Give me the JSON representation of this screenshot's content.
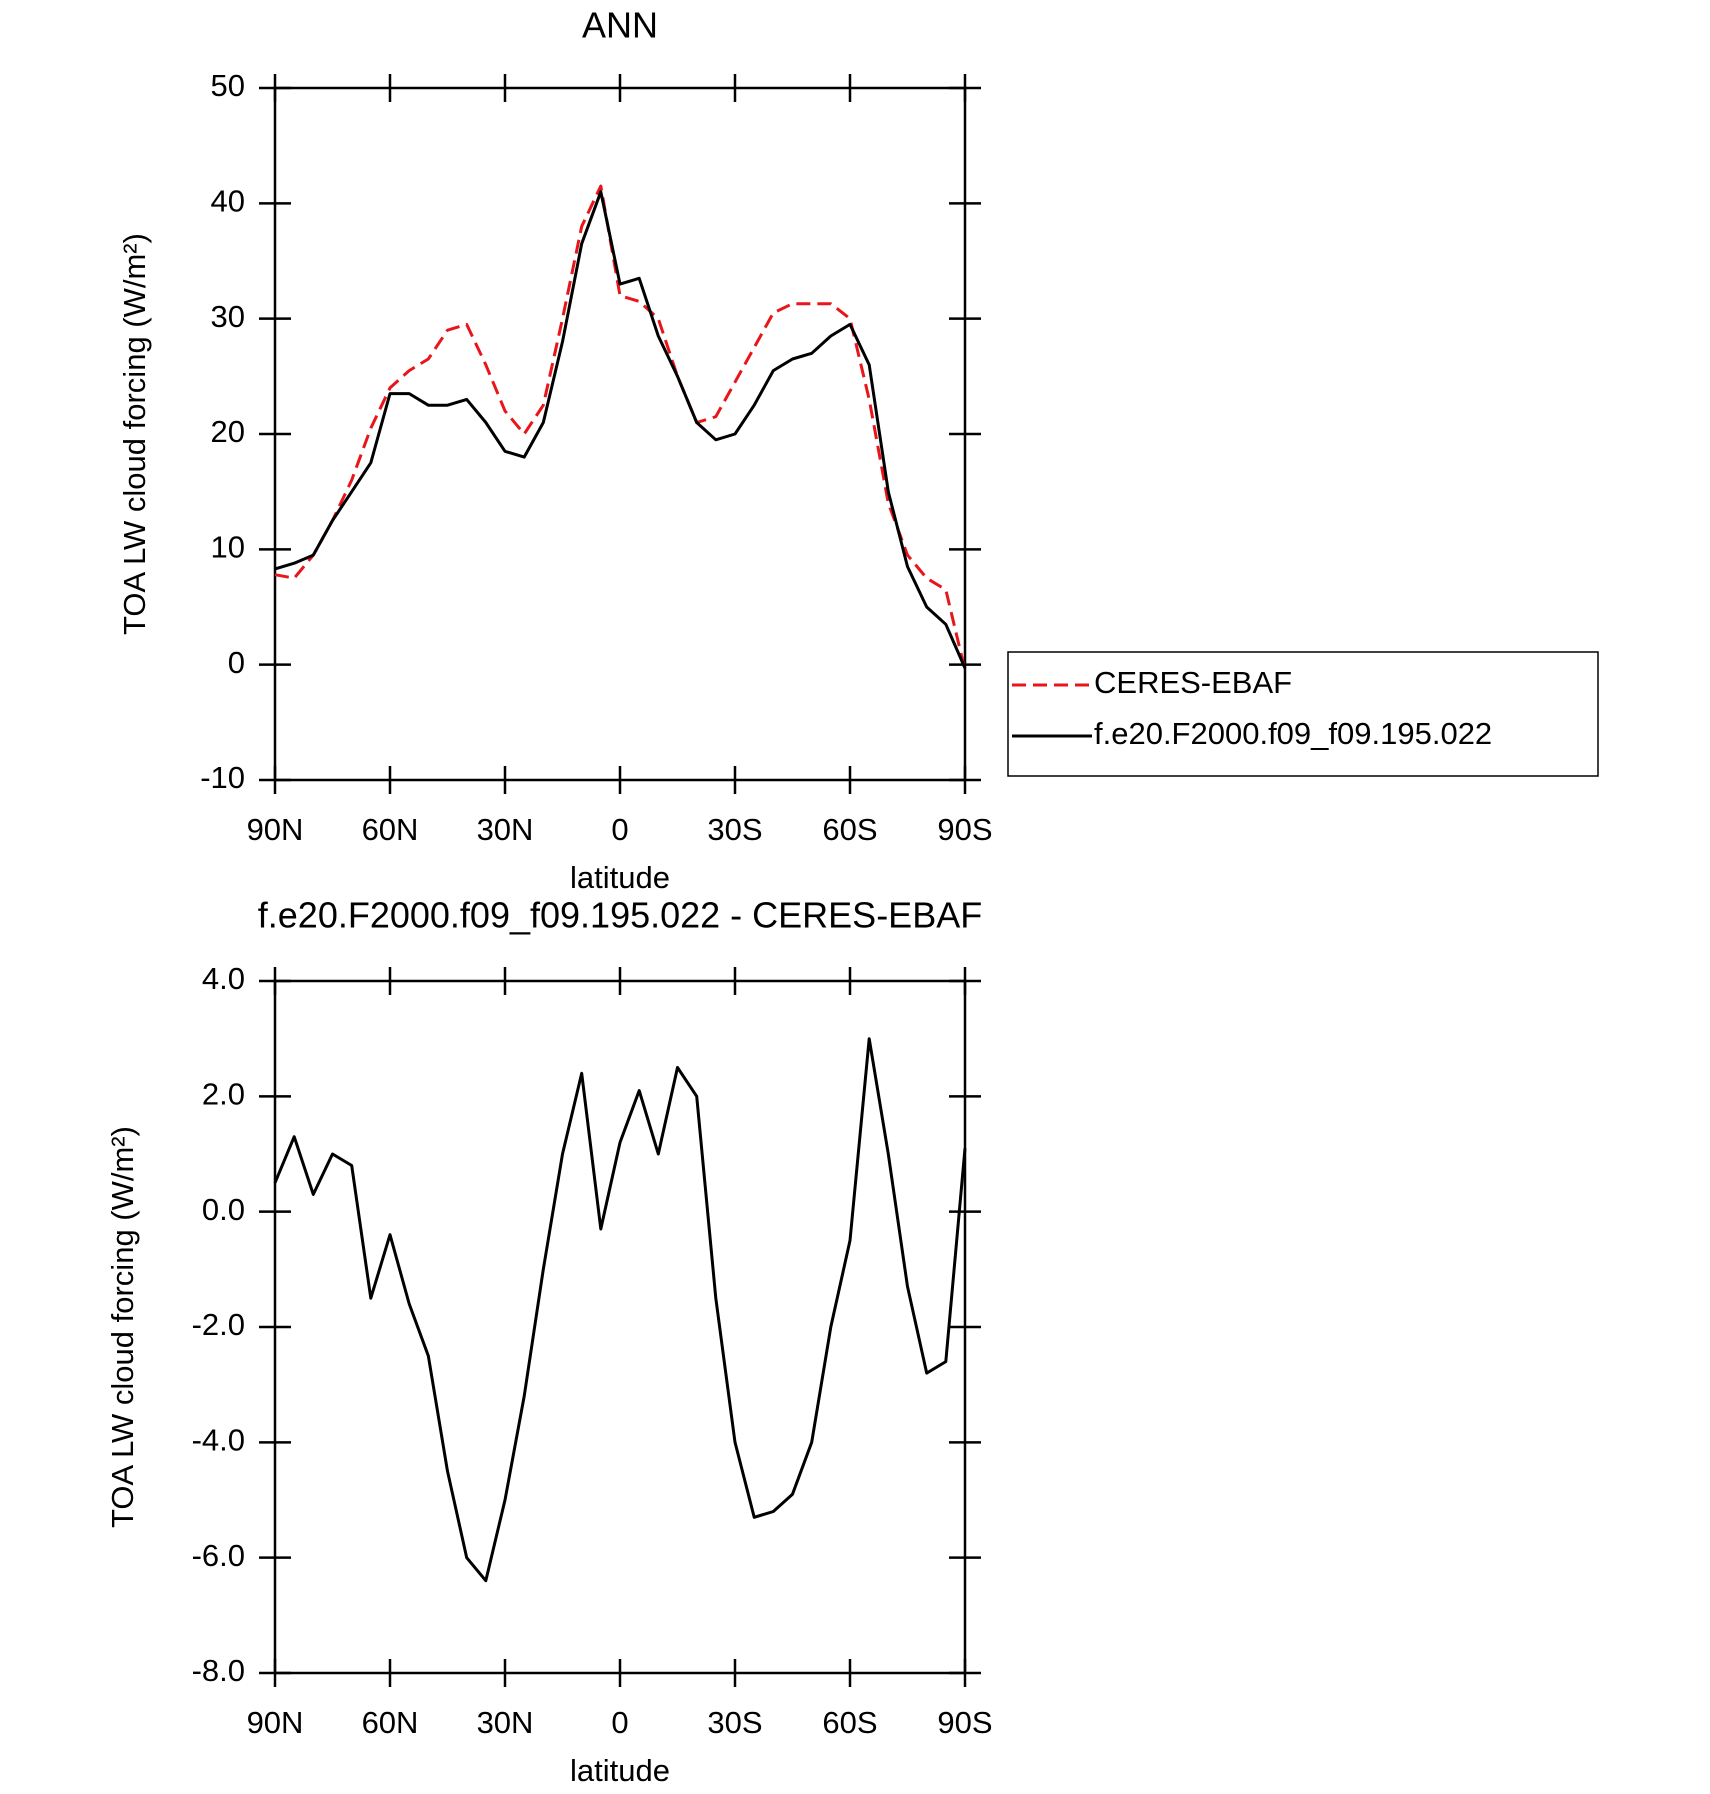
{
  "chart_data": [
    {
      "type": "line",
      "title": "ANN",
      "xlabel": "latitude",
      "ylabel": "TOA LW cloud forcing (W/m²)",
      "x": [
        90,
        85,
        80,
        75,
        70,
        65,
        60,
        55,
        50,
        45,
        40,
        35,
        30,
        25,
        20,
        15,
        10,
        5,
        0,
        -5,
        -10,
        -15,
        -20,
        -25,
        -30,
        -35,
        -40,
        -45,
        -50,
        -55,
        -60,
        -65,
        -70,
        -75,
        -80,
        -85,
        -90
      ],
      "xlim": [
        90,
        -90
      ],
      "xticks": [
        {
          "value": 90,
          "label": "90N"
        },
        {
          "value": 60,
          "label": "60N"
        },
        {
          "value": 30,
          "label": "30N"
        },
        0,
        {
          "value": -30,
          "label": "30S"
        },
        {
          "value": -60,
          "label": "60S"
        },
        {
          "value": -90,
          "label": "90S"
        }
      ],
      "ylim": [
        -10,
        50
      ],
      "yticks": [
        -10,
        0,
        10,
        20,
        30,
        40,
        50
      ],
      "series": [
        {
          "name": "CERES-EBAF",
          "color": "#e8161b",
          "dashed": true,
          "values": [
            7.8,
            7.5,
            9.5,
            12.5,
            16,
            20.5,
            24,
            25.5,
            26.5,
            29,
            29.5,
            26,
            22,
            20,
            22.5,
            30,
            38,
            41.5,
            32,
            31.5,
            30,
            25,
            21,
            21.5,
            24.5,
            27.5,
            30.5,
            31.3,
            31.3,
            31.3,
            30,
            23,
            14,
            9.5,
            7.5,
            6.5,
            -0.5
          ]
        },
        {
          "name": "f.e20.F2000.f09_f09.195.022",
          "color": "#000000",
          "dashed": false,
          "values": [
            8.3,
            8.8,
            9.5,
            12.5,
            15,
            17.5,
            23.5,
            23.5,
            22.5,
            22.5,
            23,
            21,
            18.5,
            18,
            21,
            28,
            36.5,
            41,
            33,
            33.5,
            28.5,
            25,
            21,
            19.5,
            20,
            22.5,
            25.5,
            26.5,
            27,
            28.5,
            29.5,
            26,
            15,
            8.5,
            5,
            3.5,
            -0.3
          ]
        }
      ]
    },
    {
      "type": "line",
      "title": "f.e20.F2000.f09_f09.195.022 - CERES-EBAF",
      "xlabel": "latitude",
      "ylabel": "TOA LW cloud forcing (W/m²)",
      "x": [
        90,
        85,
        80,
        75,
        70,
        65,
        60,
        55,
        50,
        45,
        40,
        35,
        30,
        25,
        20,
        15,
        10,
        5,
        0,
        -5,
        -10,
        -15,
        -20,
        -25,
        -30,
        -35,
        -40,
        -45,
        -50,
        -55,
        -60,
        -65,
        -70,
        -75,
        -80,
        -85,
        -90
      ],
      "xlim": [
        90,
        -90
      ],
      "xticks": [
        {
          "value": 90,
          "label": "90N"
        },
        {
          "value": 60,
          "label": "60N"
        },
        {
          "value": 30,
          "label": "30N"
        },
        0,
        {
          "value": -30,
          "label": "30S"
        },
        {
          "value": -60,
          "label": "60S"
        },
        {
          "value": -90,
          "label": "90S"
        }
      ],
      "ylim": [
        -8,
        4
      ],
      "yticks": [
        {
          "value": -8,
          "label": "-8.0"
        },
        {
          "value": -6,
          "label": "-6.0"
        },
        {
          "value": -4,
          "label": "-4.0"
        },
        {
          "value": -2,
          "label": "-2.0"
        },
        {
          "value": 0,
          "label": "0.0"
        },
        {
          "value": 2,
          "label": "2.0"
        },
        {
          "value": 4,
          "label": "4.0"
        }
      ],
      "series": [
        {
          "color": "#000000",
          "dashed": false,
          "values": [
            0.5,
            1.3,
            0.3,
            1.0,
            0.8,
            -1.5,
            -0.4,
            -1.6,
            -2.5,
            -4.5,
            -6.0,
            -6.4,
            -5.0,
            -3.2,
            -1.0,
            1.0,
            2.4,
            -0.3,
            1.2,
            2.1,
            1.0,
            2.5,
            2.0,
            -1.5,
            -4.0,
            -5.3,
            -5.2,
            -4.9,
            -4.0,
            -2.0,
            -0.5,
            3.0,
            1.0,
            -1.3,
            -2.8,
            -2.6,
            1.1
          ]
        }
      ]
    }
  ]
}
